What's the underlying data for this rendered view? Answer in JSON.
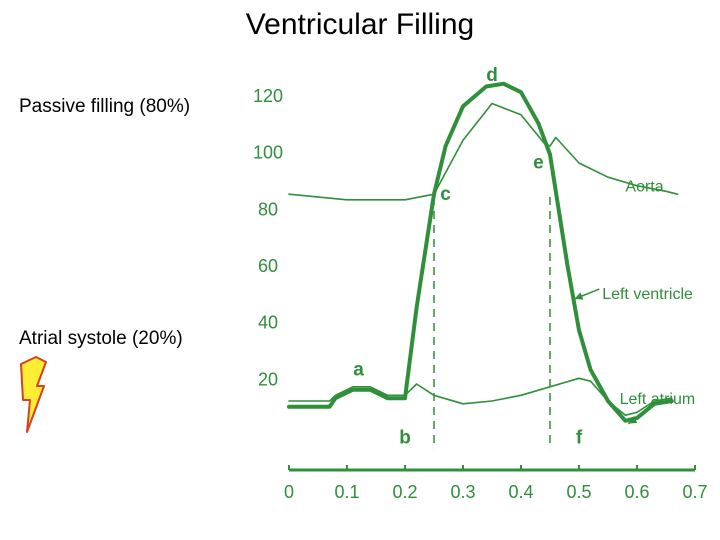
{
  "slide": {
    "title": "Ventricular Filling",
    "passive_label": "Passive filling (80%)",
    "atrial_label": "Atrial systole (20%)",
    "bolt_icon": "lightning-bolt-icon"
  },
  "colors": {
    "curve": "#2f8f3a",
    "bolt_fill": "#ffee33",
    "bolt_edge": "#d94020"
  },
  "chart_data": {
    "type": "line",
    "title": "",
    "xlabel": "",
    "ylabel": "",
    "xlim": [
      0,
      0.7
    ],
    "ylim": [
      0,
      120
    ],
    "x_ticks": [
      "0",
      "0.1",
      "0.2",
      "0.3",
      "0.4",
      "0.5",
      "0.6",
      "0.7"
    ],
    "y_ticks": [
      "20",
      "40",
      "60",
      "80",
      "100",
      "120"
    ],
    "series": [
      {
        "name": "Aorta",
        "points": [
          [
            0.0,
            85
          ],
          [
            0.1,
            83
          ],
          [
            0.2,
            83
          ],
          [
            0.25,
            85
          ],
          [
            0.3,
            104
          ],
          [
            0.35,
            117
          ],
          [
            0.4,
            113
          ],
          [
            0.44,
            103
          ],
          [
            0.45,
            102
          ],
          [
            0.46,
            105
          ],
          [
            0.5,
            96
          ],
          [
            0.55,
            91
          ],
          [
            0.6,
            88
          ],
          [
            0.65,
            86
          ],
          [
            0.67,
            85
          ]
        ]
      },
      {
        "name": "Left ventricle",
        "points": [
          [
            0.0,
            10
          ],
          [
            0.07,
            10
          ],
          [
            0.08,
            13
          ],
          [
            0.11,
            16
          ],
          [
            0.14,
            16
          ],
          [
            0.17,
            13
          ],
          [
            0.2,
            13
          ],
          [
            0.22,
            45
          ],
          [
            0.25,
            85
          ],
          [
            0.27,
            102
          ],
          [
            0.3,
            116
          ],
          [
            0.34,
            123
          ],
          [
            0.37,
            124
          ],
          [
            0.4,
            121
          ],
          [
            0.43,
            110
          ],
          [
            0.45,
            99
          ],
          [
            0.48,
            60
          ],
          [
            0.5,
            37
          ],
          [
            0.52,
            23
          ],
          [
            0.55,
            12
          ],
          [
            0.58,
            5
          ],
          [
            0.6,
            6
          ],
          [
            0.63,
            11
          ],
          [
            0.66,
            12
          ]
        ]
      },
      {
        "name": "Left atrium",
        "points": [
          [
            0.0,
            12
          ],
          [
            0.07,
            12
          ],
          [
            0.08,
            14
          ],
          [
            0.11,
            17
          ],
          [
            0.14,
            17
          ],
          [
            0.17,
            14
          ],
          [
            0.2,
            14
          ],
          [
            0.22,
            18
          ],
          [
            0.25,
            14
          ],
          [
            0.3,
            11
          ],
          [
            0.35,
            12
          ],
          [
            0.4,
            14
          ],
          [
            0.45,
            17
          ],
          [
            0.5,
            20
          ],
          [
            0.52,
            19
          ],
          [
            0.55,
            12
          ],
          [
            0.58,
            7
          ],
          [
            0.6,
            8
          ],
          [
            0.63,
            12
          ],
          [
            0.66,
            13
          ]
        ]
      }
    ],
    "annotations": [
      {
        "label": "a",
        "x": 0.12,
        "y": 21
      },
      {
        "label": "b",
        "x": 0.2,
        "y": -3
      },
      {
        "label": "c",
        "x": 0.27,
        "y": 83
      },
      {
        "label": "d",
        "x": 0.35,
        "y": 125
      },
      {
        "label": "e",
        "x": 0.43,
        "y": 94
      },
      {
        "label": "f",
        "x": 0.5,
        "y": -3
      }
    ],
    "series_labels": [
      {
        "label": "Aorta",
        "x": 0.58,
        "y": 86
      },
      {
        "label": "Left ventricle",
        "x": 0.54,
        "y": 48
      },
      {
        "label": "Left atrium",
        "x": 0.57,
        "y": 11
      }
    ],
    "dashed_markers": [
      0.25,
      0.45
    ],
    "grid": false
  }
}
